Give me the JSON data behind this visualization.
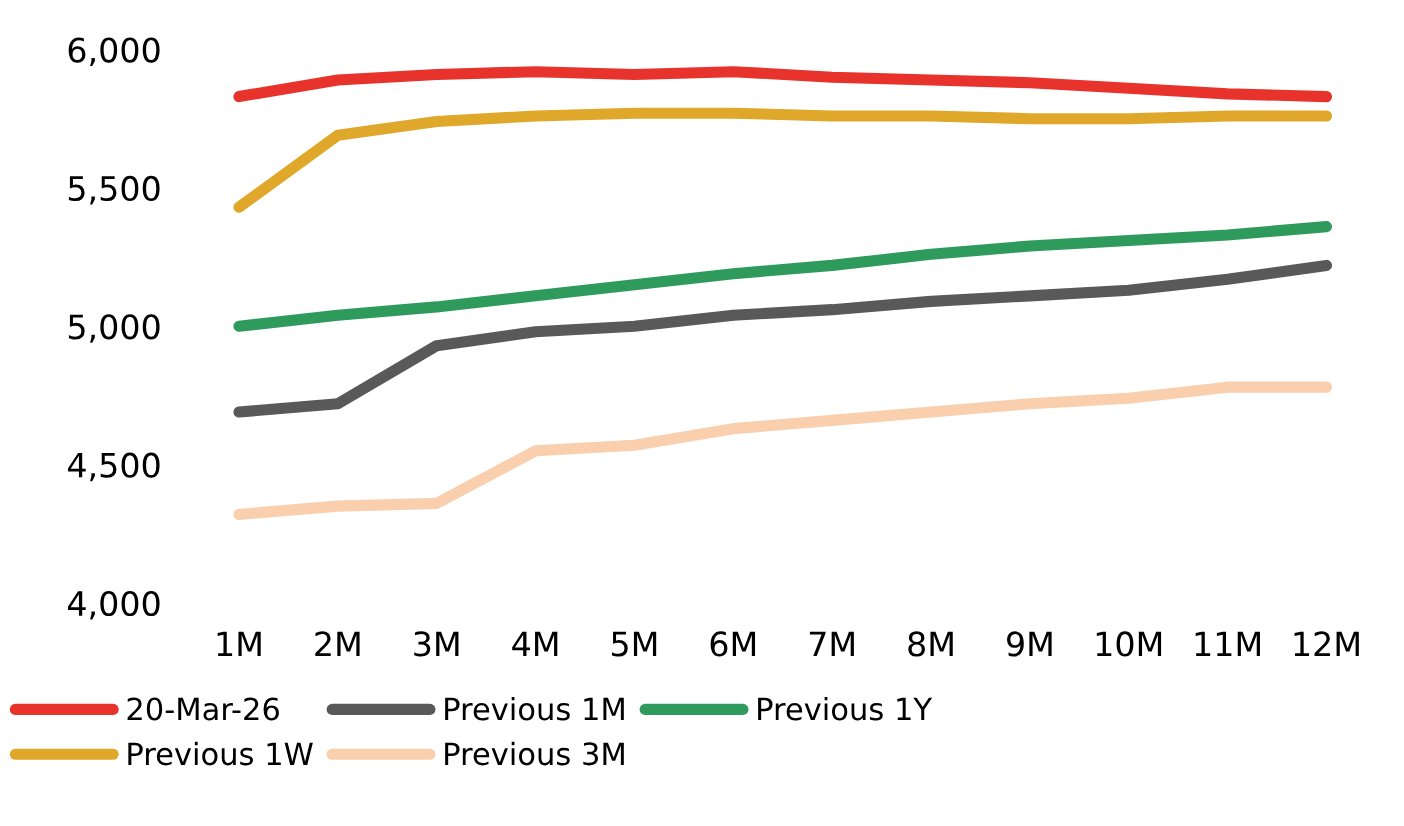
{
  "chart_data": {
    "type": "line",
    "categories": [
      "1M",
      "2M",
      "3M",
      "4M",
      "5M",
      "6M",
      "7M",
      "8M",
      "9M",
      "10M",
      "11M",
      "12M"
    ],
    "ylim": [
      4000,
      6000
    ],
    "yticks": [
      {
        "value": 4000,
        "label": "4,000"
      },
      {
        "value": 4500,
        "label": "4,500"
      },
      {
        "value": 5000,
        "label": "5,000"
      },
      {
        "value": 5500,
        "label": "5,500"
      },
      {
        "value": 6000,
        "label": "6,000"
      }
    ],
    "grid": false,
    "legend": "bottom",
    "marker": "none",
    "line_style": "solid",
    "series": [
      {
        "name": "20-Mar-26",
        "color": "#e8322c",
        "values": [
          5830,
          5890,
          5910,
          5920,
          5910,
          5920,
          5900,
          5890,
          5880,
          5860,
          5840,
          5830
        ]
      },
      {
        "name": "Previous 1W",
        "color": "#e0a82a",
        "values": [
          5430,
          5690,
          5740,
          5760,
          5770,
          5770,
          5760,
          5760,
          5750,
          5750,
          5760,
          5760
        ]
      },
      {
        "name": "Previous 1M",
        "color": "#595959",
        "values": [
          4690,
          4720,
          4930,
          4980,
          5000,
          5040,
          5060,
          5090,
          5110,
          5130,
          5170,
          5220
        ]
      },
      {
        "name": "Previous 3M",
        "color": "#f9cfad",
        "values": [
          4320,
          4350,
          4360,
          4550,
          4570,
          4630,
          4660,
          4690,
          4720,
          4740,
          4780,
          4780
        ]
      },
      {
        "name": "Previous 1Y",
        "color": "#2e9a5c",
        "values": [
          5000,
          5040,
          5070,
          5110,
          5150,
          5190,
          5220,
          5260,
          5290,
          5310,
          5330,
          5360
        ]
      }
    ]
  }
}
